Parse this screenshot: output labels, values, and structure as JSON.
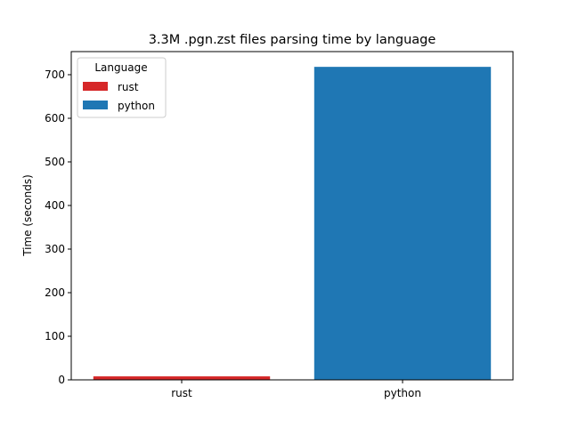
{
  "chart_data": {
    "type": "bar",
    "title": "3.3M .pgn.zst files parsing time by language",
    "xlabel": "",
    "ylabel": "Time (seconds)",
    "categories": [
      "rust",
      "python"
    ],
    "values": [
      8,
      718
    ],
    "colors": [
      "#d62728",
      "#1f77b4"
    ],
    "ylim": [
      0,
      753
    ],
    "yticks": [
      0,
      100,
      200,
      300,
      400,
      500,
      600,
      700
    ],
    "grid": false,
    "legend": {
      "title": "Language",
      "placement": "top-left",
      "entries": [
        "rust",
        "python"
      ]
    }
  }
}
